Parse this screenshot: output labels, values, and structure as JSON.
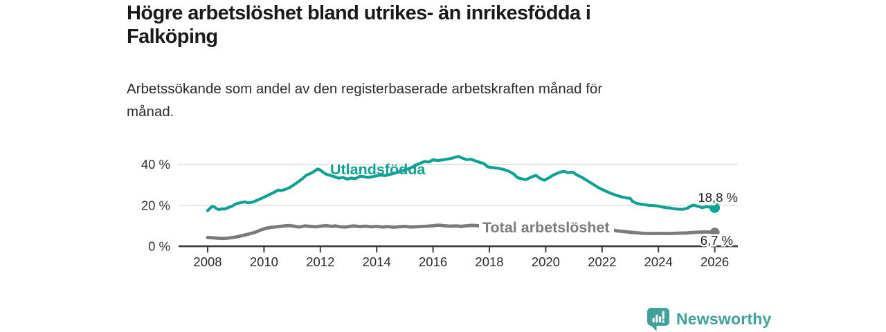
{
  "header": {
    "title": "Högre arbetslöshet bland utrikes- än inrikesfödda i\nFalköping",
    "subtitle": "Arbetssökande som andel av den registerbaserade arbetskraften månad för\nmånad."
  },
  "chart_data": {
    "type": "line",
    "title": "Högre arbetslöshet bland utrikes- än inrikesfödda i Falköping",
    "subtitle": "Arbetssökande som andel av den registerbaserade arbetskraften månad för månad",
    "unit": "%",
    "grid": "horizontal",
    "x_axis": {
      "ticks": [
        2008,
        2010,
        2012,
        2014,
        2016,
        2018,
        2020,
        2022,
        2024,
        2026
      ],
      "range": [
        2006.6,
        2026.9
      ]
    },
    "y_axis": {
      "tick_values": [
        0,
        20,
        40
      ],
      "tick_labels": [
        "0 %",
        "20 %",
        "40 %"
      ],
      "range": [
        0,
        46
      ]
    },
    "series": [
      {
        "name": "utlandsfodda",
        "label": "Utlandsfödda",
        "color": "#0FA294",
        "latest_value": 18.8,
        "end_label": "18,8 %",
        "points": [
          [
            2008.0,
            17.4
          ],
          [
            2008.1,
            18.8
          ],
          [
            2008.17,
            19.5
          ],
          [
            2008.25,
            19.1
          ],
          [
            2008.33,
            18.2
          ],
          [
            2008.42,
            17.9
          ],
          [
            2008.5,
            18.3
          ],
          [
            2008.58,
            18.1
          ],
          [
            2008.67,
            18.5
          ],
          [
            2008.75,
            19.0
          ],
          [
            2008.83,
            19.3
          ],
          [
            2008.92,
            20.0
          ],
          [
            2009.0,
            20.7
          ],
          [
            2009.17,
            21.3
          ],
          [
            2009.33,
            21.7
          ],
          [
            2009.42,
            21.2
          ],
          [
            2009.58,
            21.5
          ],
          [
            2009.75,
            22.4
          ],
          [
            2009.92,
            23.4
          ],
          [
            2010.08,
            24.5
          ],
          [
            2010.25,
            25.6
          ],
          [
            2010.42,
            26.8
          ],
          [
            2010.5,
            27.5
          ],
          [
            2010.58,
            27.1
          ],
          [
            2010.75,
            27.7
          ],
          [
            2010.92,
            28.7
          ],
          [
            2011.08,
            30.2
          ],
          [
            2011.25,
            31.8
          ],
          [
            2011.4,
            33.4
          ],
          [
            2011.5,
            34.7
          ],
          [
            2011.6,
            35.2
          ],
          [
            2011.75,
            36.3
          ],
          [
            2011.9,
            37.7
          ],
          [
            2012.0,
            37.2
          ],
          [
            2012.1,
            36.1
          ],
          [
            2012.2,
            35.2
          ],
          [
            2012.35,
            34.6
          ],
          [
            2012.5,
            34.0
          ],
          [
            2012.65,
            33.2
          ],
          [
            2012.8,
            33.6
          ],
          [
            2012.95,
            32.8
          ],
          [
            2013.1,
            33.3
          ],
          [
            2013.25,
            33.0
          ],
          [
            2013.4,
            34.2
          ],
          [
            2013.55,
            34.0
          ],
          [
            2013.7,
            33.6
          ],
          [
            2013.85,
            34.0
          ],
          [
            2014.0,
            34.4
          ],
          [
            2014.15,
            34.8
          ],
          [
            2014.3,
            34.5
          ],
          [
            2014.5,
            35.2
          ],
          [
            2014.7,
            35.9
          ],
          [
            2014.9,
            36.8
          ],
          [
            2015.1,
            37.7
          ],
          [
            2015.3,
            38.9
          ],
          [
            2015.5,
            40.3
          ],
          [
            2015.7,
            41.4
          ],
          [
            2015.85,
            41.1
          ],
          [
            2016.0,
            42.3
          ],
          [
            2016.15,
            41.9
          ],
          [
            2016.3,
            42.1
          ],
          [
            2016.5,
            42.5
          ],
          [
            2016.7,
            43.1
          ],
          [
            2016.9,
            43.9
          ],
          [
            2017.05,
            43.0
          ],
          [
            2017.2,
            42.3
          ],
          [
            2017.35,
            42.5
          ],
          [
            2017.5,
            41.7
          ],
          [
            2017.65,
            41.0
          ],
          [
            2017.8,
            40.4
          ],
          [
            2017.95,
            38.7
          ],
          [
            2018.1,
            38.4
          ],
          [
            2018.3,
            38.1
          ],
          [
            2018.5,
            37.5
          ],
          [
            2018.7,
            36.6
          ],
          [
            2018.85,
            35.4
          ],
          [
            2019.0,
            33.5
          ],
          [
            2019.15,
            32.9
          ],
          [
            2019.3,
            32.5
          ],
          [
            2019.5,
            33.9
          ],
          [
            2019.65,
            34.6
          ],
          [
            2019.8,
            33.1
          ],
          [
            2019.95,
            32.2
          ],
          [
            2020.1,
            33.3
          ],
          [
            2020.3,
            35.0
          ],
          [
            2020.5,
            36.1
          ],
          [
            2020.65,
            36.6
          ],
          [
            2020.8,
            35.9
          ],
          [
            2020.95,
            36.2
          ],
          [
            2021.1,
            34.9
          ],
          [
            2021.3,
            33.5
          ],
          [
            2021.5,
            31.8
          ],
          [
            2021.7,
            30.1
          ],
          [
            2021.9,
            28.4
          ],
          [
            2022.1,
            27.1
          ],
          [
            2022.3,
            25.9
          ],
          [
            2022.5,
            24.9
          ],
          [
            2022.7,
            24.1
          ],
          [
            2022.85,
            23.6
          ],
          [
            2023.0,
            23.4
          ],
          [
            2023.08,
            21.9
          ],
          [
            2023.2,
            21.1
          ],
          [
            2023.35,
            20.6
          ],
          [
            2023.5,
            20.3
          ],
          [
            2023.65,
            20.0
          ],
          [
            2023.8,
            19.9
          ],
          [
            2023.95,
            19.7
          ],
          [
            2024.1,
            19.3
          ],
          [
            2024.25,
            18.9
          ],
          [
            2024.4,
            18.7
          ],
          [
            2024.55,
            18.3
          ],
          [
            2024.7,
            18.1
          ],
          [
            2024.85,
            18.0
          ],
          [
            2025.0,
            18.4
          ],
          [
            2025.15,
            19.6
          ],
          [
            2025.25,
            20.1
          ],
          [
            2025.4,
            19.5
          ],
          [
            2025.55,
            18.9
          ],
          [
            2025.7,
            19.3
          ],
          [
            2025.85,
            19.1
          ],
          [
            2026.0,
            18.8
          ]
        ]
      },
      {
        "name": "total-arbetsloshet",
        "label": "Total arbetslöshet",
        "color": "#7B7B7B",
        "latest_value": 6.7,
        "end_label": "6,7 %",
        "points": [
          [
            2008.0,
            4.3
          ],
          [
            2008.2,
            4.1
          ],
          [
            2008.4,
            3.9
          ],
          [
            2008.6,
            3.8
          ],
          [
            2008.8,
            4.1
          ],
          [
            2009.0,
            4.5
          ],
          [
            2009.2,
            5.1
          ],
          [
            2009.45,
            5.9
          ],
          [
            2009.7,
            6.9
          ],
          [
            2009.9,
            8.0
          ],
          [
            2010.1,
            8.9
          ],
          [
            2010.3,
            9.3
          ],
          [
            2010.5,
            9.6
          ],
          [
            2010.7,
            9.9
          ],
          [
            2010.9,
            10.1
          ],
          [
            2011.1,
            9.7
          ],
          [
            2011.25,
            9.4
          ],
          [
            2011.45,
            9.9
          ],
          [
            2011.65,
            9.7
          ],
          [
            2011.85,
            9.5
          ],
          [
            2012.0,
            9.8
          ],
          [
            2012.2,
            10.0
          ],
          [
            2012.4,
            9.7
          ],
          [
            2012.55,
            9.9
          ],
          [
            2012.7,
            9.5
          ],
          [
            2012.9,
            9.4
          ],
          [
            2013.05,
            9.7
          ],
          [
            2013.2,
            9.9
          ],
          [
            2013.4,
            9.6
          ],
          [
            2013.6,
            9.8
          ],
          [
            2013.8,
            9.5
          ],
          [
            2014.0,
            9.7
          ],
          [
            2014.2,
            9.4
          ],
          [
            2014.4,
            9.6
          ],
          [
            2014.6,
            9.3
          ],
          [
            2014.8,
            9.5
          ],
          [
            2015.0,
            9.7
          ],
          [
            2015.2,
            9.4
          ],
          [
            2015.5,
            9.6
          ],
          [
            2015.8,
            9.8
          ],
          [
            2016.0,
            10.0
          ],
          [
            2016.2,
            10.3
          ],
          [
            2016.4,
            10.0
          ],
          [
            2016.6,
            9.8
          ],
          [
            2016.8,
            9.9
          ],
          [
            2017.0,
            9.7
          ],
          [
            2017.2,
            10.0
          ],
          [
            2017.4,
            10.2
          ],
          [
            2017.6,
            10.0
          ],
          [
            2018.0,
            10.1
          ],
          [
            2018.4,
            9.8
          ],
          [
            2018.8,
            9.6
          ],
          [
            2019.2,
            9.4
          ],
          [
            2019.6,
            9.5
          ],
          [
            2020.0,
            9.3
          ],
          [
            2020.4,
            9.6
          ],
          [
            2020.8,
            9.4
          ],
          [
            2021.2,
            9.0
          ],
          [
            2021.6,
            8.6
          ],
          [
            2022.0,
            8.2
          ],
          [
            2022.4,
            7.8
          ],
          [
            2022.6,
            7.4
          ],
          [
            2022.9,
            7.0
          ],
          [
            2023.2,
            6.6
          ],
          [
            2023.5,
            6.3
          ],
          [
            2023.8,
            6.2
          ],
          [
            2024.1,
            6.3
          ],
          [
            2024.4,
            6.2
          ],
          [
            2024.7,
            6.4
          ],
          [
            2025.0,
            6.5
          ],
          [
            2025.2,
            6.7
          ],
          [
            2025.45,
            6.9
          ],
          [
            2025.7,
            7.0
          ],
          [
            2025.85,
            6.9
          ],
          [
            2026.0,
            6.7
          ]
        ]
      }
    ]
  },
  "branding": {
    "logo_text": "Newsworthy",
    "logo_icon": "bar-chart-speech-bubble-icon",
    "logo_color": "#3EA29A"
  },
  "colors": {
    "background": "#FFFFFF",
    "title_text": "#1A1A1A",
    "body_text": "#2B2B2B",
    "axis_line": "#3C3C3C",
    "gridline": "#DCDCDC",
    "tick_label": "#333333",
    "value_label": "#1F1F1F",
    "series_foreign_born": "#0FA294",
    "series_total": "#7B7B7B"
  }
}
